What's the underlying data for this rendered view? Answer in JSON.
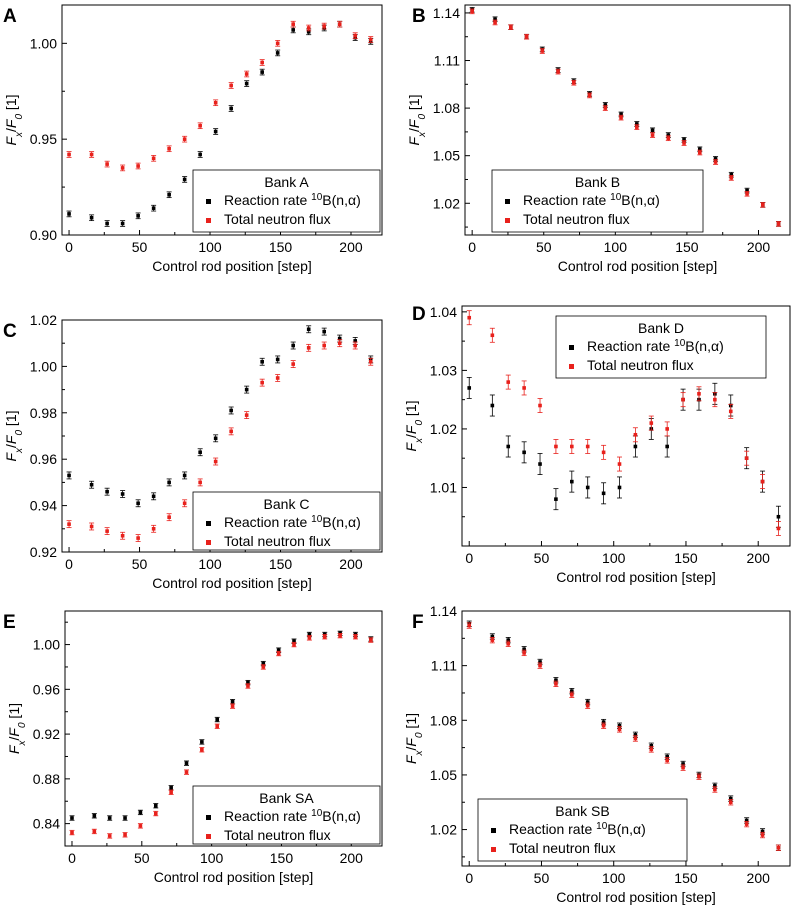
{
  "chart_data": [
    {
      "type": "scatter",
      "panel": "A",
      "legend_title": "Bank A",
      "legend_position": "bottom-right",
      "xlabel": "Control rod position [step]",
      "ylabel": "F_x/F_0 [1]",
      "xlim": [
        -5,
        222
      ],
      "ylim": [
        0.9,
        1.02
      ],
      "xticks": [
        0,
        50,
        100,
        150,
        200
      ],
      "yticks": [
        0.9,
        0.95,
        1.0
      ],
      "ytick_labels": [
        "0.90",
        "0.95",
        "1.00"
      ],
      "x": [
        0,
        16,
        27,
        38,
        49,
        60,
        71,
        82,
        93,
        104,
        115,
        126,
        137,
        148,
        159,
        170,
        181,
        192,
        203,
        214
      ],
      "series": [
        {
          "name": "Reaction rate 10B(n,α)",
          "color": "#000000",
          "values": [
            0.911,
            0.909,
            0.906,
            0.906,
            0.91,
            0.914,
            0.921,
            0.929,
            0.942,
            0.954,
            0.966,
            0.979,
            0.985,
            0.995,
            1.007,
            1.006,
            1.008,
            1.01,
            1.003,
            1.001
          ],
          "errors": [
            0.0015,
            0.0015,
            0.0015,
            0.0015,
            0.0015,
            0.0015,
            0.0015,
            0.0015,
            0.0015,
            0.0015,
            0.0015,
            0.0015,
            0.0015,
            0.0015,
            0.0015,
            0.0015,
            0.0015,
            0.0015,
            0.0015,
            0.0015
          ]
        },
        {
          "name": "Total neutron flux",
          "color": "#e8211c",
          "values": [
            0.942,
            0.942,
            0.937,
            0.935,
            0.936,
            0.94,
            0.945,
            0.95,
            0.957,
            0.969,
            0.978,
            0.984,
            0.99,
            1.0,
            1.01,
            1.008,
            1.009,
            1.01,
            1.004,
            1.002
          ],
          "errors": [
            0.0015,
            0.0015,
            0.0015,
            0.0015,
            0.0015,
            0.0015,
            0.0015,
            0.0015,
            0.0015,
            0.0015,
            0.0015,
            0.0015,
            0.0015,
            0.0015,
            0.0015,
            0.0015,
            0.0015,
            0.0015,
            0.0015,
            0.0015
          ]
        }
      ]
    },
    {
      "type": "scatter",
      "panel": "B",
      "legend_title": "Bank B",
      "legend_position": "bottom-left",
      "xlabel": "Control rod position [step]",
      "ylabel": "F_x/F_0 [1]",
      "xlim": [
        -5,
        222
      ],
      "ylim": [
        1.0,
        1.145
      ],
      "xticks": [
        0,
        50,
        100,
        150,
        200
      ],
      "yticks": [
        1.02,
        1.05,
        1.08,
        1.11,
        1.14
      ],
      "ytick_labels": [
        "1.02",
        "1.05",
        "1.08",
        "1.11",
        "1.14"
      ],
      "x": [
        0,
        16,
        27,
        38,
        49,
        60,
        71,
        82,
        93,
        104,
        115,
        126,
        137,
        148,
        159,
        170,
        181,
        192,
        203,
        214
      ],
      "series": [
        {
          "name": "Reaction rate 10B(n,α)",
          "color": "#000000",
          "values": [
            1.142,
            1.136,
            1.131,
            1.125,
            1.117,
            1.104,
            1.097,
            1.089,
            1.082,
            1.076,
            1.07,
            1.066,
            1.063,
            1.06,
            1.054,
            1.048,
            1.038,
            1.028,
            1.019,
            1.007
          ],
          "errors": [
            0.0015,
            0.0015,
            0.0015,
            0.0015,
            0.0015,
            0.0015,
            0.0015,
            0.0015,
            0.0015,
            0.0015,
            0.0015,
            0.0015,
            0.0015,
            0.0015,
            0.0015,
            0.0015,
            0.0015,
            0.0015,
            0.0015,
            0.0015
          ]
        },
        {
          "name": "Total neutron flux",
          "color": "#e8211c",
          "values": [
            1.141,
            1.134,
            1.131,
            1.125,
            1.116,
            1.103,
            1.096,
            1.088,
            1.08,
            1.074,
            1.068,
            1.063,
            1.061,
            1.058,
            1.052,
            1.046,
            1.036,
            1.026,
            1.019,
            1.007
          ],
          "errors": [
            0.0015,
            0.0015,
            0.0015,
            0.0015,
            0.0015,
            0.0015,
            0.0015,
            0.0015,
            0.0015,
            0.0015,
            0.0015,
            0.0015,
            0.0015,
            0.0015,
            0.0015,
            0.0015,
            0.0015,
            0.0015,
            0.0015,
            0.0015
          ]
        }
      ]
    },
    {
      "type": "scatter",
      "panel": "C",
      "legend_title": "Bank C",
      "legend_position": "bottom-right",
      "xlabel": "Control rod position [step]",
      "ylabel": "F_x/F_0 [1]",
      "xlim": [
        -5,
        222
      ],
      "ylim": [
        0.92,
        1.02
      ],
      "xticks": [
        0,
        50,
        100,
        150,
        200
      ],
      "yticks": [
        0.92,
        0.94,
        0.96,
        0.98,
        1.0,
        1.02
      ],
      "ytick_labels": [
        "0.92",
        "0.94",
        "0.96",
        "0.98",
        "1.00",
        "1.02"
      ],
      "x": [
        0,
        16,
        27,
        38,
        49,
        60,
        71,
        82,
        93,
        104,
        115,
        126,
        137,
        148,
        159,
        170,
        181,
        192,
        203,
        214
      ],
      "series": [
        {
          "name": "Reaction rate 10B(n,α)",
          "color": "#000000",
          "values": [
            0.953,
            0.949,
            0.946,
            0.945,
            0.941,
            0.944,
            0.95,
            0.953,
            0.963,
            0.969,
            0.981,
            0.99,
            1.002,
            1.003,
            1.009,
            1.016,
            1.015,
            1.012,
            1.011,
            1.003
          ],
          "errors": [
            0.0015,
            0.0015,
            0.0015,
            0.0015,
            0.0015,
            0.0015,
            0.0015,
            0.0015,
            0.0015,
            0.0015,
            0.0015,
            0.0015,
            0.0015,
            0.0015,
            0.0015,
            0.0015,
            0.0015,
            0.0015,
            0.0015,
            0.0015
          ]
        },
        {
          "name": "Total neutron flux",
          "color": "#e8211c",
          "values": [
            0.932,
            0.931,
            0.929,
            0.927,
            0.926,
            0.93,
            0.935,
            0.941,
            0.95,
            0.959,
            0.972,
            0.979,
            0.993,
            0.995,
            1.001,
            1.008,
            1.009,
            1.01,
            1.009,
            1.002
          ],
          "errors": [
            0.0015,
            0.0015,
            0.0015,
            0.0015,
            0.0015,
            0.0015,
            0.0015,
            0.0015,
            0.0015,
            0.0015,
            0.0015,
            0.0015,
            0.0015,
            0.0015,
            0.0015,
            0.0015,
            0.0015,
            0.0015,
            0.0015,
            0.0015
          ]
        }
      ]
    },
    {
      "type": "scatter",
      "panel": "D",
      "legend_title": "Bank D",
      "legend_position": "top-center",
      "xlabel": "Control rod position [step]",
      "ylabel": "F_x/F_0 [1]",
      "xlim": [
        -5,
        222
      ],
      "ylim": [
        1.0,
        1.041
      ],
      "xticks": [
        0,
        50,
        100,
        150,
        200
      ],
      "yticks": [
        1.01,
        1.02,
        1.03,
        1.04
      ],
      "ytick_labels": [
        "1.01",
        "1.02",
        "1.03",
        "1.04"
      ],
      "x": [
        0,
        16,
        27,
        38,
        49,
        60,
        71,
        82,
        93,
        104,
        115,
        126,
        137,
        148,
        159,
        170,
        181,
        192,
        203,
        214
      ],
      "series": [
        {
          "name": "Reaction rate 10B(n,α)",
          "color": "#000000",
          "values": [
            1.027,
            1.024,
            1.017,
            1.016,
            1.014,
            1.008,
            1.011,
            1.01,
            1.009,
            1.01,
            1.017,
            1.02,
            1.017,
            1.025,
            1.025,
            1.026,
            1.024,
            1.015,
            1.011,
            1.005
          ],
          "errors": [
            0.0018,
            0.0018,
            0.0018,
            0.0018,
            0.0018,
            0.0018,
            0.0018,
            0.0018,
            0.0018,
            0.0018,
            0.0018,
            0.0018,
            0.0018,
            0.0018,
            0.0018,
            0.0018,
            0.0018,
            0.0018,
            0.0018,
            0.0018
          ]
        },
        {
          "name": "Total neutron flux",
          "color": "#e8211c",
          "values": [
            1.039,
            1.036,
            1.028,
            1.027,
            1.024,
            1.017,
            1.017,
            1.017,
            1.016,
            1.014,
            1.019,
            1.021,
            1.02,
            1.025,
            1.026,
            1.025,
            1.023,
            1.015,
            1.011,
            1.003
          ],
          "errors": [
            0.0012,
            0.0012,
            0.0012,
            0.0012,
            0.0012,
            0.0012,
            0.0012,
            0.0012,
            0.0012,
            0.0012,
            0.0012,
            0.0012,
            0.0012,
            0.0012,
            0.0012,
            0.0012,
            0.0012,
            0.0012,
            0.0012,
            0.0012
          ]
        }
      ]
    },
    {
      "type": "scatter",
      "panel": "E",
      "legend_title": "Bank SA",
      "legend_position": "bottom-right",
      "xlabel": "Control rod position [step]",
      "ylabel": "F_x/F_0 [1]",
      "xlim": [
        -5,
        222
      ],
      "ylim": [
        0.82,
        1.03
      ],
      "xticks": [
        0,
        50,
        100,
        150,
        200
      ],
      "yticks": [
        0.84,
        0.88,
        0.92,
        0.96,
        1.0
      ],
      "ytick_labels": [
        "0.84",
        "0.88",
        "0.92",
        "0.96",
        "1.00"
      ],
      "x": [
        0,
        16,
        27,
        38,
        49,
        60,
        71,
        82,
        93,
        104,
        115,
        126,
        137,
        148,
        159,
        170,
        181,
        192,
        203,
        214
      ],
      "series": [
        {
          "name": "Reaction rate 10B(n,α)",
          "color": "#000000",
          "values": [
            0.845,
            0.847,
            0.845,
            0.845,
            0.85,
            0.856,
            0.872,
            0.894,
            0.913,
            0.933,
            0.949,
            0.966,
            0.983,
            0.995,
            1.003,
            1.009,
            1.009,
            1.01,
            1.009,
            1.005
          ],
          "errors": [
            0.002,
            0.002,
            0.002,
            0.002,
            0.002,
            0.002,
            0.002,
            0.002,
            0.002,
            0.002,
            0.002,
            0.002,
            0.002,
            0.002,
            0.002,
            0.002,
            0.002,
            0.002,
            0.002,
            0.002
          ]
        },
        {
          "name": "Total neutron flux",
          "color": "#e8211c",
          "values": [
            0.832,
            0.833,
            0.829,
            0.83,
            0.838,
            0.849,
            0.868,
            0.886,
            0.906,
            0.927,
            0.945,
            0.963,
            0.98,
            0.992,
            1.0,
            1.006,
            1.007,
            1.008,
            1.007,
            1.004
          ],
          "errors": [
            0.002,
            0.002,
            0.002,
            0.002,
            0.002,
            0.002,
            0.002,
            0.002,
            0.002,
            0.002,
            0.002,
            0.002,
            0.002,
            0.002,
            0.002,
            0.002,
            0.002,
            0.002,
            0.002,
            0.002
          ]
        }
      ]
    },
    {
      "type": "scatter",
      "panel": "F",
      "legend_title": "Bank SB",
      "legend_position": "bottom-left",
      "xlabel": "Control rod position [step]",
      "ylabel": "F_x/F_0 [1]",
      "xlim": [
        -5,
        222
      ],
      "ylim": [
        1.0,
        1.14
      ],
      "xticks": [
        0,
        50,
        100,
        150,
        200
      ],
      "yticks": [
        1.02,
        1.05,
        1.08,
        1.11,
        1.14
      ],
      "ytick_labels": [
        "1.02",
        "1.05",
        "1.08",
        "1.11",
        "1.14"
      ],
      "x": [
        0,
        16,
        27,
        38,
        49,
        60,
        71,
        82,
        93,
        104,
        115,
        126,
        137,
        148,
        159,
        170,
        181,
        192,
        203,
        214
      ],
      "series": [
        {
          "name": "Reaction rate 10B(n,α)",
          "color": "#000000",
          "values": [
            1.133,
            1.126,
            1.124,
            1.119,
            1.112,
            1.102,
            1.096,
            1.09,
            1.079,
            1.077,
            1.072,
            1.066,
            1.06,
            1.056,
            1.05,
            1.044,
            1.037,
            1.025,
            1.019,
            1.01
          ],
          "errors": [
            0.0015,
            0.0015,
            0.0015,
            0.0015,
            0.0015,
            0.0015,
            0.0015,
            0.0015,
            0.0015,
            0.0015,
            0.0015,
            0.0015,
            0.0015,
            0.0015,
            0.0015,
            0.0015,
            0.0015,
            0.0015,
            0.0015,
            0.0015
          ]
        },
        {
          "name": "Total neutron flux",
          "color": "#e8211c",
          "values": [
            1.132,
            1.124,
            1.122,
            1.117,
            1.11,
            1.1,
            1.094,
            1.088,
            1.077,
            1.075,
            1.07,
            1.064,
            1.058,
            1.054,
            1.049,
            1.042,
            1.035,
            1.023,
            1.017,
            1.01
          ],
          "errors": [
            0.0015,
            0.0015,
            0.0015,
            0.0015,
            0.0015,
            0.0015,
            0.0015,
            0.0015,
            0.0015,
            0.0015,
            0.0015,
            0.0015,
            0.0015,
            0.0015,
            0.0015,
            0.0015,
            0.0015,
            0.0015,
            0.0015,
            0.0015
          ]
        }
      ]
    }
  ]
}
